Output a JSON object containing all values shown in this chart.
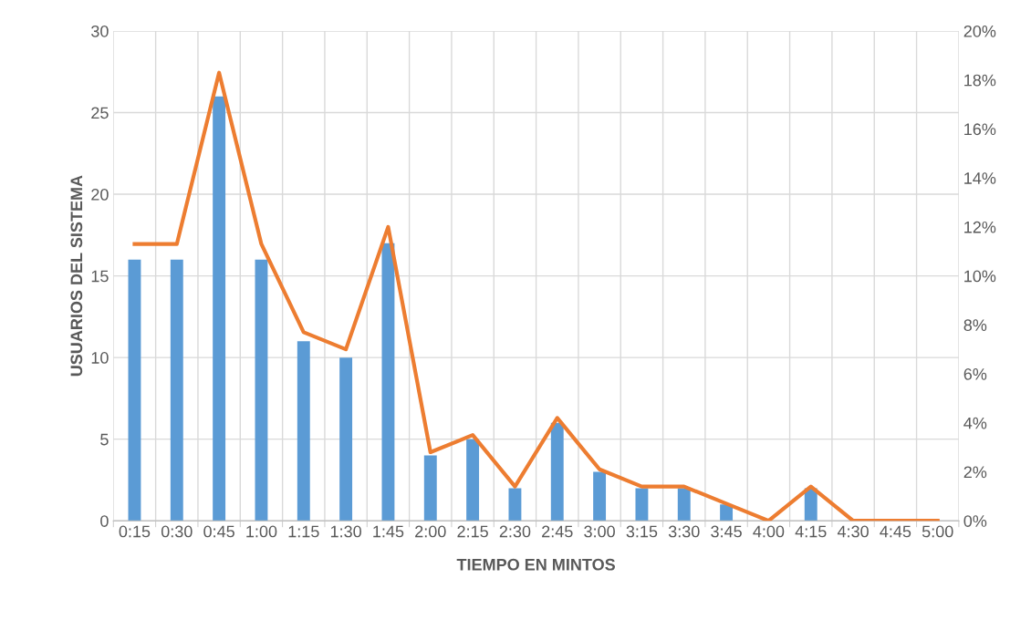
{
  "chart_data": {
    "type": "bar",
    "xlabel": "TIEMPO EN MINTOS",
    "ylabel": "USUARIOS DEL SISTEMA",
    "categories": [
      "0:15",
      "0:30",
      "0:45",
      "1:00",
      "1:15",
      "1:30",
      "1:45",
      "2:00",
      "2:15",
      "2:30",
      "2:45",
      "3:00",
      "3:15",
      "3:30",
      "3:45",
      "4:00",
      "4:15",
      "4:30",
      "4:45",
      "5:00"
    ],
    "series": [
      {
        "color": "#5b9bd5",
        "values": [
          16,
          16,
          26,
          16,
          11,
          10,
          17,
          4,
          5,
          2,
          6,
          3,
          2,
          2,
          1,
          0,
          2,
          0,
          0,
          0
        ]
      },
      {
        "type": "line",
        "axis": "y2",
        "color": "#ed7d31",
        "values": [
          11.3,
          11.3,
          18.3,
          11.3,
          7.7,
          7.0,
          12.0,
          2.8,
          3.5,
          1.4,
          4.2,
          2.1,
          1.4,
          1.4,
          0.7,
          0,
          1.4,
          0,
          0,
          0
        ]
      }
    ],
    "ylim": [
      0,
      30
    ],
    "yticks": [
      0,
      5,
      10,
      15,
      20,
      25,
      30
    ],
    "y2lim": [
      0,
      20
    ],
    "y2ticks": [
      {
        "value": 0,
        "label": "0%"
      },
      {
        "value": 2,
        "label": "2%"
      },
      {
        "value": 4,
        "label": "4%"
      },
      {
        "value": 6,
        "label": "6%"
      },
      {
        "value": 8,
        "label": "8%"
      },
      {
        "value": 10,
        "label": "10%"
      },
      {
        "value": 12,
        "label": "12%"
      },
      {
        "value": 14,
        "label": "14%"
      },
      {
        "value": 16,
        "label": "16%"
      },
      {
        "value": 18,
        "label": "18%"
      },
      {
        "value": 20,
        "label": "20%"
      }
    ],
    "grid": true,
    "legend": false,
    "marker": "none",
    "line_style": "solid"
  }
}
